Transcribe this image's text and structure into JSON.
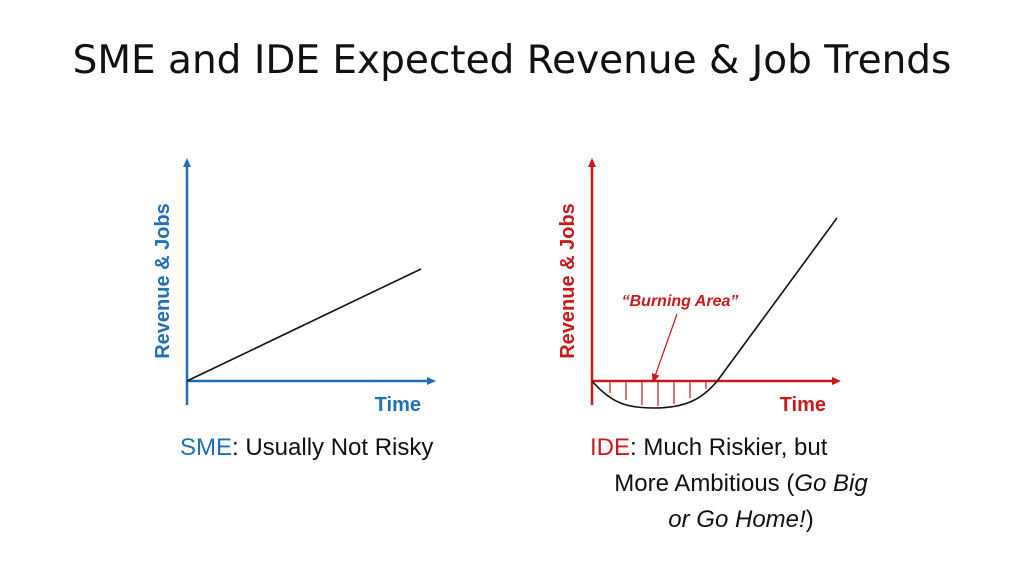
{
  "title": "SME and IDE Expected Revenue & Job Trends",
  "colors": {
    "sme": "#1f6fb5",
    "ide": "#c8191b",
    "line": "#111111"
  },
  "left_chart": {
    "ylabel": "Revenue & Jobs",
    "xlabel": "Time",
    "caption_tag": "SME",
    "caption_text": ": Usually Not Risky"
  },
  "right_chart": {
    "ylabel": "Revenue & Jobs",
    "xlabel": "Time",
    "annotation": "“Burning Area”",
    "caption_tag": "IDE",
    "caption_line1": ": Much Riskier, but",
    "caption_line2_plain": "More Ambitious (",
    "caption_line2_italic": "Go Big",
    "caption_line3_italic": "or Go Home!",
    "caption_line3_plain": ")"
  }
}
